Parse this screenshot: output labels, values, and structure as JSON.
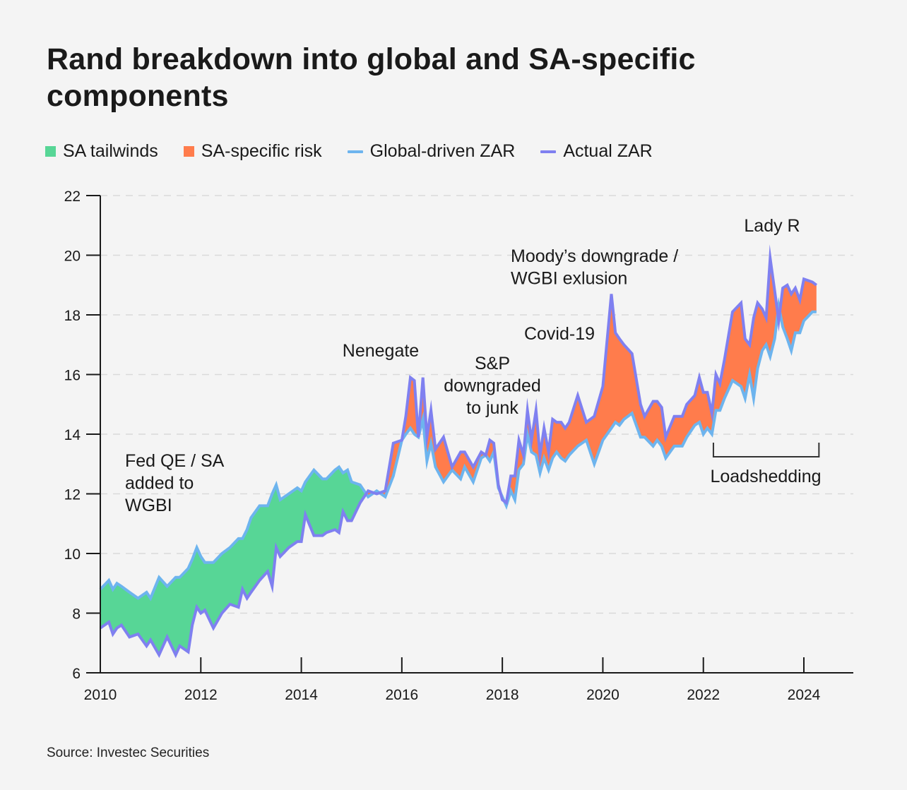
{
  "title": "Rand breakdown into global and SA-specific components",
  "source": "Source: Investec Securities",
  "legend": [
    {
      "label": "SA tailwinds",
      "kind": "box",
      "color": "#57d696"
    },
    {
      "label": "SA-specific risk",
      "kind": "box",
      "color": "#ff7c4c"
    },
    {
      "label": "Global-driven ZAR",
      "kind": "line",
      "color": "#6db4ee"
    },
    {
      "label": "Actual ZAR",
      "kind": "line",
      "color": "#7f80f0"
    }
  ],
  "colors": {
    "tailwinds": "#57d696",
    "risk": "#ff7c4c",
    "global": "#6db4ee",
    "actual": "#7f80f0",
    "axis": "#1a1a1a",
    "grid": "#d9d9d9"
  },
  "chart_data": {
    "type": "area",
    "title": "Rand breakdown into global and SA-specific components",
    "xlabel": "",
    "ylabel": "",
    "xlim": [
      2010,
      2025
    ],
    "ylim": [
      6,
      22
    ],
    "x_ticks": [
      2010,
      2012,
      2014,
      2016,
      2018,
      2020,
      2022,
      2024
    ],
    "y_ticks": [
      6,
      8,
      10,
      12,
      14,
      16,
      18,
      20,
      22
    ],
    "grid": "horizontal-dashed",
    "legend_position": "top-left",
    "fill_rule": "Area between the two lines is green (SA tailwinds) where Global-driven ZAR > Actual ZAR, orange (SA-specific risk) where Actual ZAR > Global-driven ZAR",
    "x": [
      2010.0,
      2010.17,
      2010.25,
      2010.33,
      2010.42,
      2010.58,
      2010.75,
      2010.92,
      2011.0,
      2011.17,
      2011.33,
      2011.5,
      2011.58,
      2011.75,
      2011.83,
      2011.92,
      2012.0,
      2012.08,
      2012.25,
      2012.42,
      2012.58,
      2012.75,
      2012.83,
      2012.92,
      2013.0,
      2013.17,
      2013.33,
      2013.42,
      2013.5,
      2013.58,
      2013.75,
      2013.92,
      2014.0,
      2014.08,
      2014.25,
      2014.42,
      2014.5,
      2014.67,
      2014.75,
      2014.83,
      2014.92,
      2015.0,
      2015.17,
      2015.33,
      2015.5,
      2015.67,
      2015.83,
      2016.0,
      2016.08,
      2016.17,
      2016.25,
      2016.33,
      2016.42,
      2016.5,
      2016.58,
      2016.67,
      2016.83,
      2017.0,
      2017.17,
      2017.25,
      2017.42,
      2017.58,
      2017.67,
      2017.75,
      2017.83,
      2017.92,
      2018.0,
      2018.08,
      2018.17,
      2018.25,
      2018.33,
      2018.42,
      2018.5,
      2018.58,
      2018.67,
      2018.75,
      2018.83,
      2018.92,
      2019.0,
      2019.08,
      2019.17,
      2019.25,
      2019.33,
      2019.5,
      2019.67,
      2019.83,
      2020.0,
      2020.17,
      2020.25,
      2020.33,
      2020.42,
      2020.58,
      2020.75,
      2020.83,
      2021.0,
      2021.08,
      2021.17,
      2021.25,
      2021.42,
      2021.58,
      2021.67,
      2021.83,
      2021.92,
      2022.0,
      2022.08,
      2022.17,
      2022.25,
      2022.33,
      2022.42,
      2022.58,
      2022.75,
      2022.83,
      2022.92,
      2023.0,
      2023.08,
      2023.17,
      2023.25,
      2023.33,
      2023.42,
      2023.5,
      2023.58,
      2023.67,
      2023.75,
      2023.83,
      2023.92,
      2024.0,
      2024.17,
      2024.25
    ],
    "series": [
      {
        "name": "Global-driven ZAR",
        "values": [
          8.8,
          9.1,
          8.8,
          9.0,
          8.9,
          8.7,
          8.5,
          8.7,
          8.5,
          9.2,
          8.9,
          9.2,
          9.2,
          9.5,
          9.8,
          10.2,
          9.9,
          9.7,
          9.7,
          10.0,
          10.2,
          10.5,
          10.5,
          10.8,
          11.2,
          11.6,
          11.6,
          12.0,
          12.3,
          11.8,
          12.0,
          12.2,
          12.1,
          12.4,
          12.8,
          12.5,
          12.5,
          12.8,
          12.9,
          12.7,
          12.8,
          12.4,
          12.3,
          11.9,
          12.1,
          11.9,
          12.6,
          13.8,
          14.0,
          14.2,
          14.0,
          13.9,
          14.5,
          13.1,
          13.7,
          12.9,
          12.4,
          12.8,
          12.5,
          12.9,
          12.4,
          13.2,
          13.3,
          13.1,
          13.4,
          12.2,
          11.9,
          11.6,
          12.1,
          11.8,
          12.8,
          13.0,
          14.0,
          13.4,
          13.3,
          12.7,
          13.2,
          12.8,
          13.2,
          13.4,
          13.2,
          13.1,
          13.3,
          13.6,
          13.8,
          13.0,
          13.8,
          14.2,
          14.4,
          14.3,
          14.5,
          14.7,
          13.9,
          13.9,
          13.6,
          13.8,
          13.6,
          13.2,
          13.6,
          13.6,
          13.9,
          14.3,
          14.4,
          14.0,
          14.2,
          14.0,
          14.8,
          14.8,
          15.2,
          15.8,
          15.6,
          15.2,
          16.0,
          15.2,
          16.2,
          16.8,
          17.0,
          16.6,
          17.2,
          18.3,
          17.6,
          17.2,
          16.8,
          17.4,
          17.4,
          17.8,
          18.1,
          18.1
        ],
        "color": "#6db4ee"
      },
      {
        "name": "Actual ZAR",
        "values": [
          7.5,
          7.7,
          7.3,
          7.5,
          7.6,
          7.2,
          7.3,
          6.9,
          7.1,
          6.6,
          7.2,
          6.6,
          6.9,
          6.7,
          7.6,
          8.2,
          8.0,
          8.1,
          7.5,
          8.0,
          8.3,
          8.2,
          8.8,
          8.5,
          8.7,
          9.1,
          9.4,
          8.9,
          10.2,
          9.9,
          10.2,
          10.4,
          10.4,
          11.3,
          10.6,
          10.6,
          10.7,
          10.8,
          10.7,
          11.4,
          11.1,
          11.1,
          11.7,
          12.1,
          12.0,
          12.1,
          13.7,
          13.8,
          14.6,
          15.9,
          15.8,
          13.9,
          15.9,
          13.9,
          14.8,
          13.5,
          13.9,
          12.9,
          13.4,
          13.4,
          12.9,
          13.4,
          13.3,
          13.8,
          13.7,
          12.3,
          11.8,
          11.7,
          12.6,
          12.6,
          13.8,
          13.3,
          14.8,
          13.8,
          14.8,
          13.3,
          14.2,
          13.4,
          14.5,
          14.4,
          14.4,
          14.2,
          14.4,
          15.3,
          14.4,
          14.6,
          15.6,
          18.7,
          17.4,
          17.2,
          17.0,
          16.7,
          15.0,
          14.6,
          15.1,
          15.1,
          14.9,
          13.9,
          14.6,
          14.6,
          15.0,
          15.3,
          15.9,
          15.4,
          15.4,
          14.7,
          16.0,
          15.7,
          16.5,
          18.1,
          18.4,
          17.2,
          17.0,
          17.9,
          18.4,
          18.2,
          17.9,
          19.9,
          18.8,
          17.8,
          18.9,
          19.0,
          18.7,
          18.9,
          18.5,
          19.2,
          19.1,
          19.0
        ],
        "color": "#7f80f0"
      }
    ],
    "annotations": [
      {
        "text": [
          "Fed QE / SA",
          "added to",
          "WGBI"
        ],
        "near_x": 2011.5,
        "near_y": 13
      },
      {
        "text": [
          "Nenegate"
        ],
        "near_x": 2015.9,
        "near_y": 16.8
      },
      {
        "text": [
          "S&P",
          "downgraded",
          "to junk"
        ],
        "near_x": 2017.9,
        "near_y": 16
      },
      {
        "text": [
          "Covid-19"
        ],
        "near_x": 2019.1,
        "near_y": 17.4
      },
      {
        "text": [
          "Moody’s downgrade /",
          "WGBI exlusion"
        ],
        "near_x": 2019.0,
        "near_y": 19.8
      },
      {
        "text": [
          "Lady R"
        ],
        "near_x": 2023.0,
        "near_y": 20.8
      },
      {
        "text": [
          "Loadshedding"
        ],
        "near_x": 2023.2,
        "near_y": 12.6,
        "bracket": [
          2022.2,
          2024.3
        ]
      }
    ]
  }
}
